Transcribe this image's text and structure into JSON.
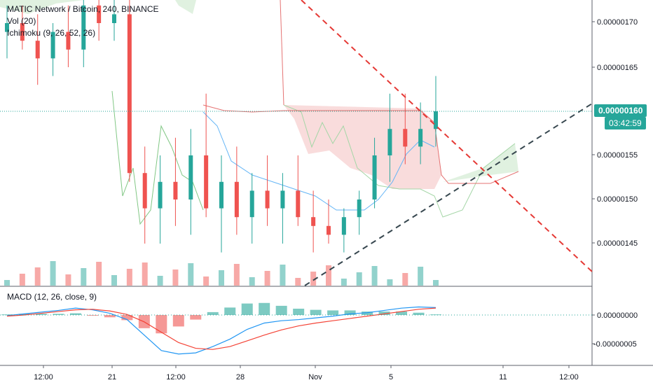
{
  "legend": {
    "title": "MATIC Network / Bitcoin, 240, BINANCE",
    "vol": "Vol (20)",
    "ichimoku": "Ichimoku (9, 26, 52, 26)",
    "macd": "MACD (12, 26, close, 9)"
  },
  "price_axis": {
    "ticks": [
      "0.00000170",
      "0.00000165",
      "0.00000155",
      "0.00000150",
      "0.00000145"
    ],
    "current_price": "0.00000160",
    "countdown": "03:42:59"
  },
  "macd_axis": {
    "ticks": [
      "0.00000000",
      "-0.00000005"
    ]
  },
  "time_axis": {
    "ticks": [
      "12:00",
      "21",
      "12:00",
      "28",
      "Nov",
      "5",
      "11",
      "12:00"
    ]
  },
  "colors": {
    "up": "#26a69a",
    "down": "#ef5350",
    "cloud_bull": "#a5d6a7",
    "cloud_bear": "#ef9a9a",
    "trend_down": "#e53935",
    "trend_up": "#37474f",
    "macd_line": "#2196f3",
    "signal_line": "#f44336"
  },
  "chart_data": [
    {
      "type": "candlestick",
      "title": "MATIC Network / Bitcoin, 240, BINANCE",
      "indicators": [
        "Vol (20)",
        "Ichimoku (9, 26, 52, 26)"
      ],
      "x": [
        "12:00",
        "21",
        "12:00",
        "28",
        "Nov",
        "5",
        "11",
        "12:00"
      ],
      "ylim": [
        1.4e-06,
        1.73e-06
      ],
      "last_price": 1.6e-06,
      "ohlc": [
        [
          1.69e-06,
          1.72e-06,
          1.66e-06,
          1.7e-06
        ],
        [
          1.7e-06,
          1.72e-06,
          1.67e-06,
          1.68e-06
        ],
        [
          1.68e-06,
          1.71e-06,
          1.63e-06,
          1.66e-06
        ],
        [
          1.66e-06,
          1.7e-06,
          1.64e-06,
          1.69e-06
        ],
        [
          1.69e-06,
          1.72e-06,
          1.65e-06,
          1.67e-06
        ],
        [
          1.67e-06,
          1.73e-06,
          1.65e-06,
          1.72e-06
        ],
        [
          1.72e-06,
          1.73e-06,
          1.68e-06,
          1.7e-06
        ],
        [
          1.7e-06,
          1.73e-06,
          1.68e-06,
          1.71e-06
        ],
        [
          1.71e-06,
          1.73e-06,
          1.52e-06,
          1.53e-06
        ],
        [
          1.53e-06,
          1.56e-06,
          1.45e-06,
          1.49e-06
        ],
        [
          1.49e-06,
          1.55e-06,
          1.45e-06,
          1.52e-06
        ],
        [
          1.52e-06,
          1.57e-06,
          1.47e-06,
          1.5e-06
        ],
        [
          1.5e-06,
          1.58e-06,
          1.46e-06,
          1.55e-06
        ],
        [
          1.55e-06,
          1.62e-06,
          1.48e-06,
          1.49e-06
        ],
        [
          1.49e-06,
          1.55e-06,
          1.44e-06,
          1.52e-06
        ],
        [
          1.52e-06,
          1.56e-06,
          1.46e-06,
          1.48e-06
        ],
        [
          1.48e-06,
          1.53e-06,
          1.45e-06,
          1.51e-06
        ],
        [
          1.51e-06,
          1.55e-06,
          1.47e-06,
          1.49e-06
        ],
        [
          1.49e-06,
          1.53e-06,
          1.45e-06,
          1.51e-06
        ],
        [
          1.51e-06,
          1.55e-06,
          1.47e-06,
          1.48e-06
        ],
        [
          1.48e-06,
          1.51e-06,
          1.44e-06,
          1.47e-06
        ],
        [
          1.47e-06,
          1.5e-06,
          1.45e-06,
          1.46e-06
        ],
        [
          1.46e-06,
          1.49e-06,
          1.44e-06,
          1.48e-06
        ],
        [
          1.48e-06,
          1.51e-06,
          1.46e-06,
          1.5e-06
        ],
        [
          1.5e-06,
          1.57e-06,
          1.49e-06,
          1.55e-06
        ],
        [
          1.55e-06,
          1.62e-06,
          1.52e-06,
          1.58e-06
        ],
        [
          1.58e-06,
          1.62e-06,
          1.54e-06,
          1.56e-06
        ],
        [
          1.56e-06,
          1.61e-06,
          1.54e-06,
          1.58e-06
        ],
        [
          1.58e-06,
          1.64e-06,
          1.56e-06,
          1.6e-06
        ]
      ]
    },
    {
      "type": "line",
      "title": "MACD (12, 26, close, 9)",
      "ylim": [
        -7.5e-08,
        2.2e-08
      ],
      "series": [
        {
          "values": [
            -1e-09,
            2e-09,
            5e-09,
            8e-09,
            1.2e-08,
            9e-09,
            3e-09,
            -8e-09,
            -3.5e-08,
            -6.2e-08,
            -6.8e-08,
            -6.6e-08,
            -5.5e-08,
            -4.2e-08,
            -2.5e-08,
            -1.4e-08,
            -1e-08,
            -8e-09,
            -5e-09,
            -2e-09,
            2e-09,
            4e-09,
            8e-09,
            1.2e-08,
            1.4e-08,
            1.3e-08
          ]
        },
        {
          "values": [
            -2e-09,
            0.0,
            3e-09,
            6e-09,
            9e-09,
            1e-08,
            7e-09,
            1e-09,
            -1.2e-08,
            -3e-08,
            -4.8e-08,
            -5.8e-08,
            -6e-08,
            -5.5e-08,
            -4.5e-08,
            -3.5e-08,
            -2.6e-08,
            -1.9e-08,
            -1.4e-08,
            -1e-08,
            -6e-09,
            -2e-09,
            2e-09,
            6e-09,
            1e-08,
            1.2e-08
          ]
        }
      ]
    }
  ]
}
